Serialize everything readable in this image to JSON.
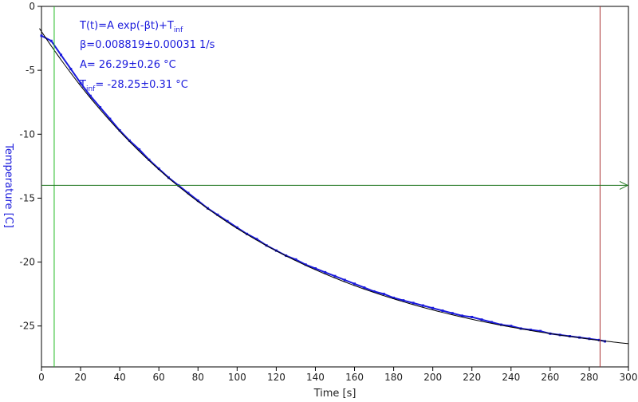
{
  "chart_data": {
    "type": "scatter",
    "xlabel": "Time [s]",
    "ylabel": "Temperature [C]",
    "xlim": [
      0,
      300
    ],
    "ylim": [
      -28.2,
      0
    ],
    "x_ticks": [
      0,
      20,
      40,
      60,
      80,
      100,
      120,
      140,
      160,
      180,
      200,
      220,
      240,
      260,
      280,
      300
    ],
    "y_ticks": [
      0,
      -5,
      -10,
      -15,
      -20,
      -25
    ],
    "grid": false,
    "annotation": {
      "formula_main": "T(t)=A exp(-βt)+T",
      "formula_sub": "inf",
      "beta": "β=0.008819±0.00031 1/s",
      "A": "A= 26.29±0.26 °C",
      "tinf_prefix": "T",
      "tinf_sub": "inf",
      "tinf_value": "= -28.25±0.31 °C"
    },
    "fit": {
      "A": 26.29,
      "beta": 0.008819,
      "t_inf": -28.25,
      "x_range": [
        -1,
        300
      ]
    },
    "measured": {
      "color": "#1a1adc",
      "x": [
        0,
        5,
        10,
        15,
        20,
        25,
        30,
        35,
        40,
        45,
        50,
        55,
        60,
        65,
        70,
        75,
        80,
        85,
        90,
        95,
        100,
        105,
        110,
        115,
        120,
        125,
        130,
        135,
        140,
        145,
        150,
        155,
        160,
        165,
        170,
        175,
        180,
        185,
        190,
        195,
        200,
        205,
        210,
        215,
        220,
        225,
        230,
        235,
        240,
        245,
        250,
        255,
        260,
        265,
        270,
        275,
        280,
        285,
        288
      ],
      "y": [
        -2.3,
        -2.7,
        -3.8,
        -4.9,
        -6.0,
        -7.0,
        -7.9,
        -8.8,
        -9.7,
        -10.5,
        -11.2,
        -12.0,
        -12.7,
        -13.4,
        -14.0,
        -14.6,
        -15.2,
        -15.8,
        -16.3,
        -16.8,
        -17.3,
        -17.8,
        -18.2,
        -18.7,
        -19.1,
        -19.5,
        -19.8,
        -20.2,
        -20.5,
        -20.8,
        -21.1,
        -21.4,
        -21.7,
        -22.0,
        -22.3,
        -22.5,
        -22.8,
        -23.0,
        -23.2,
        -23.4,
        -23.6,
        -23.8,
        -24.0,
        -24.2,
        -24.3,
        -24.5,
        -24.7,
        -24.9,
        -25.0,
        -25.2,
        -25.3,
        -25.4,
        -25.6,
        -25.7,
        -25.8,
        -25.9,
        -26.0,
        -26.1,
        -26.2
      ]
    },
    "markers": {
      "vertical_green": {
        "x": 6.5,
        "color": "#22bb22"
      },
      "vertical_red": {
        "x": 285.5,
        "color": "#aa3333"
      },
      "horizontal_green": {
        "y": -14.0,
        "color": "#227722"
      }
    }
  }
}
